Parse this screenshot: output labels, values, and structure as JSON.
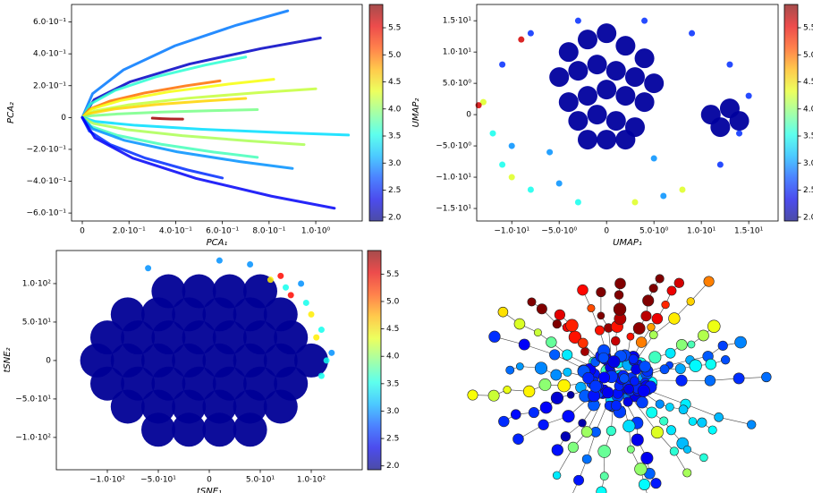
{
  "chart_data": [
    {
      "type": "line",
      "xlabel": "PCA₁",
      "ylabel": "PCA₂",
      "xlim": [
        -0.046,
        1.199
      ],
      "ylim": [
        -0.65,
        0.71
      ],
      "xticks": [
        0,
        {
          "value": 0.2,
          "label": "2.0·10⁻¹"
        },
        {
          "value": 0.4,
          "label": "4.0·10⁻¹"
        },
        {
          "value": 0.6,
          "label": "6.0·10⁻¹"
        },
        {
          "value": 0.8,
          "label": "8.0·10⁻¹"
        },
        {
          "value": 1.0,
          "label": "1.0·10⁰"
        }
      ],
      "yticks": [
        {
          "value": -0.6,
          "label": "−6.0·10⁻¹"
        },
        {
          "value": -0.4,
          "label": "−4.0·10⁻¹"
        },
        {
          "value": -0.2,
          "label": "−2.0·10⁻¹"
        },
        0,
        {
          "value": 0.2,
          "label": "2.0·10⁻¹"
        },
        {
          "value": 0.4,
          "label": "4.0·10⁻¹"
        },
        {
          "value": 0.6,
          "label": "6.0·10⁻¹"
        }
      ],
      "colorbar": {
        "colormap": "jet",
        "clim": [
          1.93,
          5.93
        ],
        "ticks": [
          {
            "value": 2,
            "label": "2.0"
          },
          2.5,
          {
            "value": 3,
            "label": "3.0"
          },
          3.5,
          {
            "value": 4,
            "label": "4.0"
          },
          4.5,
          {
            "value": 5,
            "label": "5.0"
          },
          5.5
        ]
      },
      "series": [
        {
          "c": 2.9,
          "x": [
            0,
            0.044,
            0.176,
            0.396,
            0.66,
            0.88
          ],
          "y": [
            0,
            0.15,
            0.299,
            0.45,
            0.58,
            0.67
          ]
        },
        {
          "c": 2.2,
          "x": [
            0,
            0.051,
            0.204,
            0.459,
            0.765,
            1.02
          ],
          "y": [
            0,
            0.112,
            0.224,
            0.336,
            0.433,
            0.5
          ]
        },
        {
          "c": 3.6,
          "x": [
            0,
            0.035,
            0.14,
            0.315,
            0.525,
            0.7
          ],
          "y": [
            0,
            0.085,
            0.17,
            0.255,
            0.329,
            0.38
          ]
        },
        {
          "c": 5.0,
          "x": [
            0,
            0.03,
            0.118,
            0.266,
            0.443,
            0.59
          ],
          "y": [
            0,
            0.052,
            0.103,
            0.154,
            0.199,
            0.23
          ]
        },
        {
          "c": 4.4,
          "x": [
            0,
            0.041,
            0.164,
            0.369,
            0.615,
            0.82
          ],
          "y": [
            0,
            0.054,
            0.107,
            0.161,
            0.208,
            0.24
          ]
        },
        {
          "c": 4.2,
          "x": [
            0,
            0.05,
            0.2,
            0.45,
            0.75,
            1.0
          ],
          "y": [
            0,
            0.04,
            0.08,
            0.121,
            0.156,
            0.18
          ]
        },
        {
          "c": 4.6,
          "x": [
            0,
            0.035,
            0.14,
            0.315,
            0.525,
            0.7
          ],
          "y": [
            0,
            0.027,
            0.054,
            0.081,
            0.104,
            0.12
          ]
        },
        {
          "c": 3.9,
          "x": [
            0,
            0.038,
            0.15,
            0.338,
            0.563,
            0.75
          ],
          "y": [
            0,
            0.011,
            0.022,
            0.034,
            0.043,
            0.05
          ]
        },
        {
          "c": 3.3,
          "x": [
            0,
            0.057,
            0.228,
            0.513,
            0.855,
            1.14
          ],
          "y": [
            0,
            -0.025,
            -0.049,
            -0.074,
            -0.095,
            -0.11
          ]
        },
        {
          "c": 4.1,
          "x": [
            0,
            0.048,
            0.19,
            0.428,
            0.713,
            0.95
          ],
          "y": [
            0,
            -0.038,
            -0.076,
            -0.114,
            -0.147,
            -0.17
          ]
        },
        {
          "c": 3.7,
          "x": [
            0,
            0.038,
            0.15,
            0.338,
            0.563,
            0.75
          ],
          "y": [
            0,
            -0.056,
            -0.112,
            -0.168,
            -0.217,
            -0.25
          ]
        },
        {
          "c": 3.0,
          "x": [
            0,
            0.045,
            0.18,
            0.405,
            0.675,
            0.9
          ],
          "y": [
            0,
            -0.072,
            -0.143,
            -0.215,
            -0.277,
            -0.32
          ]
        },
        {
          "c": 2.6,
          "x": [
            0,
            0.03,
            0.12,
            0.27,
            0.45,
            0.6
          ],
          "y": [
            0,
            -0.085,
            -0.17,
            -0.255,
            -0.329,
            -0.38
          ]
        },
        {
          "c": 2.4,
          "x": [
            0,
            0.054,
            0.216,
            0.486,
            0.81,
            1.08
          ],
          "y": [
            0,
            -0.128,
            -0.255,
            -0.382,
            -0.494,
            -0.57
          ]
        },
        {
          "c": 5.8,
          "x": [
            0.3,
            0.34,
            0.38,
            0.43
          ],
          "y": [
            -0.004,
            -0.007,
            -0.009,
            -0.01
          ]
        }
      ]
    },
    {
      "type": "scatter",
      "xlabel": "UMAP₁",
      "ylabel": "UMAP₂",
      "xlim": [
        -13.7,
        18.1
      ],
      "ylim": [
        -17,
        17.6
      ],
      "xticks": [
        {
          "value": -10,
          "label": "−1.0·10¹"
        },
        {
          "value": -5,
          "label": "−5.0·10⁰"
        },
        0,
        {
          "value": 5,
          "label": "5.0·10⁰"
        },
        {
          "value": 10,
          "label": "1.0·10¹"
        },
        {
          "value": 15,
          "label": "1.5·10¹"
        }
      ],
      "yticks": [
        {
          "value": -15,
          "label": "−1.5·10¹"
        },
        {
          "value": -10,
          "label": "−1.0·10¹"
        },
        {
          "value": -5,
          "label": "−5.0·10⁰"
        },
        0,
        {
          "value": 5,
          "label": "5.0·10⁰"
        },
        {
          "value": 10,
          "label": "1.0·10¹"
        },
        {
          "value": 15,
          "label": "1.5·10¹"
        }
      ],
      "colorbar": {
        "colormap": "jet",
        "clim": [
          1.93,
          5.93
        ],
        "ticks": [
          {
            "value": 2,
            "label": "2.0"
          },
          2.5,
          {
            "value": 3,
            "label": "3.0"
          },
          3.5,
          {
            "value": 4,
            "label": "4.0"
          },
          4.5,
          {
            "value": 5,
            "label": "5.0"
          },
          5.5
        ]
      },
      "series": [
        {
          "c": 2.05,
          "x": [
            -4,
            -2,
            0,
            2,
            4,
            -5,
            -3,
            -1,
            1,
            3,
            5,
            -4,
            -2,
            0,
            2,
            4,
            -3,
            -1,
            1,
            3,
            -2,
            0,
            2,
            11,
            13,
            12,
            14
          ],
          "y": [
            10,
            12,
            13,
            11,
            9,
            6,
            7,
            8,
            7,
            6,
            5,
            2,
            3,
            4,
            3,
            2,
            -1,
            0,
            -1,
            -2,
            -4,
            -4,
            -4,
            0,
            1,
            -2,
            -1
          ]
        },
        {
          "c": 3.5,
          "x": [
            -12,
            -11,
            -8,
            -3
          ],
          "y": [
            -3,
            -8,
            -12,
            -14
          ]
        },
        {
          "c": 4.3,
          "x": [
            3,
            8,
            -10,
            -13
          ],
          "y": [
            -14,
            -12,
            -10,
            2
          ]
        },
        {
          "c": 2.6,
          "x": [
            12,
            14,
            15,
            13,
            9,
            4,
            -3,
            -8,
            -11
          ],
          "y": [
            -8,
            -3,
            3,
            8,
            13,
            15,
            15,
            13,
            8
          ]
        },
        {
          "c": 5.6,
          "x": [
            -13.5,
            -9
          ],
          "y": [
            1.5,
            12
          ]
        },
        {
          "c": 3.0,
          "x": [
            -6,
            5,
            -10,
            6,
            -5
          ],
          "y": [
            -6,
            -7,
            -5,
            -13,
            -11
          ]
        }
      ]
    },
    {
      "type": "scatter",
      "xlabel": "tSNE₁",
      "ylabel": "tSNE₂",
      "xlim": [
        -150,
        150
      ],
      "ylim": [
        -142,
        143
      ],
      "xticks": [
        {
          "value": -100,
          "label": "−1.0·10²"
        },
        {
          "value": -50,
          "label": "−5.0·10¹"
        },
        0,
        {
          "value": 50,
          "label": "5.0·10¹"
        },
        {
          "value": 100,
          "label": "1.0·10²"
        }
      ],
      "yticks": [
        {
          "value": -100,
          "label": "−1.0·10²"
        },
        {
          "value": -50,
          "label": "−5.0·10¹"
        },
        0,
        {
          "value": 50,
          "label": "5.0·10¹"
        },
        {
          "value": 100,
          "label": "1.0·10²"
        }
      ],
      "colorbar": {
        "colormap": "jet",
        "clim": [
          1.93,
          5.93
        ],
        "ticks": [
          {
            "value": 2,
            "label": "2.0"
          },
          2.5,
          {
            "value": 3,
            "label": "3.0"
          },
          3.5,
          {
            "value": 4,
            "label": "4.0"
          },
          4.5,
          {
            "value": 5,
            "label": "5.0"
          },
          5.5
        ]
      },
      "series": [
        {
          "c": 2.02,
          "x": [
            -40,
            -10,
            20,
            50,
            -80,
            -50,
            -20,
            10,
            40,
            70,
            -100,
            -70,
            -40,
            -10,
            20,
            50,
            80,
            -110,
            -80,
            -50,
            -20,
            10,
            40,
            70,
            100,
            -100,
            -70,
            -40,
            -10,
            20,
            50,
            80,
            -80,
            -50,
            -20,
            10,
            40,
            70,
            -50,
            -20,
            10,
            40
          ],
          "y": [
            90,
            90,
            90,
            90,
            60,
            60,
            60,
            60,
            60,
            60,
            30,
            30,
            30,
            30,
            30,
            30,
            30,
            0,
            0,
            0,
            0,
            0,
            0,
            0,
            0,
            -30,
            -30,
            -30,
            -30,
            -30,
            -30,
            -30,
            -60,
            -60,
            -60,
            -60,
            -60,
            -60,
            -90,
            -90,
            -90,
            -90
          ]
        },
        {
          "c": 3.5,
          "x": [
            75,
            95,
            110,
            115,
            110
          ],
          "y": [
            95,
            75,
            40,
            0,
            -20
          ]
        },
        {
          "c": 4.5,
          "x": [
            60,
            100,
            105
          ],
          "y": [
            105,
            60,
            30
          ]
        },
        {
          "c": 5.4,
          "x": [
            70,
            80
          ],
          "y": [
            110,
            85
          ]
        },
        {
          "c": 3.0,
          "x": [
            40,
            90,
            120,
            -60,
            10
          ],
          "y": [
            125,
            100,
            10,
            120,
            130
          ]
        }
      ]
    }
  ]
}
